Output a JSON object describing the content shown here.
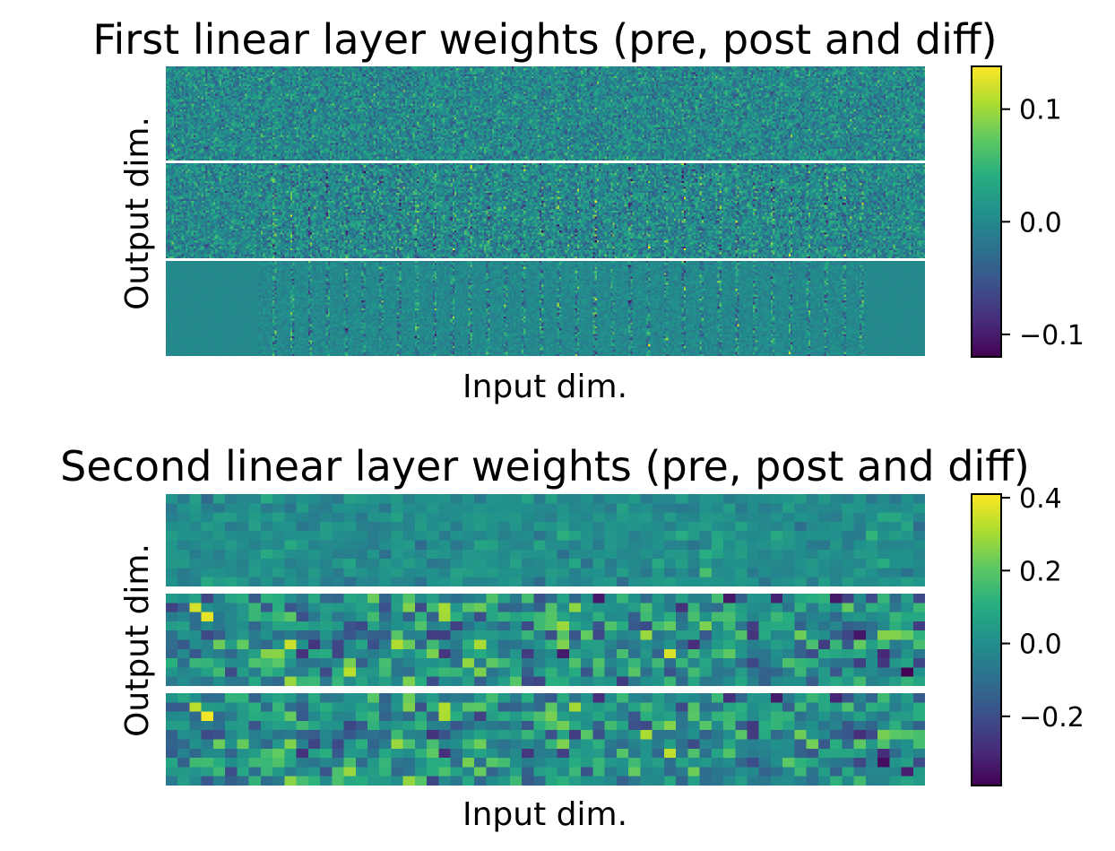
{
  "chart_data": [
    {
      "type": "heatmap",
      "title": "First linear layer weights (pre, post and diff)",
      "xlabel": "Input dim.",
      "ylabel": "Output dim.",
      "colormap": "viridis",
      "panels": [
        "pre",
        "post",
        "diff"
      ],
      "matrix_size": {
        "rows_per_panel": 48,
        "cols": 384
      },
      "colorbar": {
        "vmin": -0.12,
        "vmax": 0.138,
        "ticks": [
          0.1,
          0.0,
          -0.1
        ],
        "tick_labels": [
          "0.1",
          "0.0",
          "−0.1"
        ]
      }
    },
    {
      "type": "heatmap",
      "title": "Second linear layer weights (pre, post and diff)",
      "xlabel": "Input dim.",
      "ylabel": "Output dim.",
      "colormap": "viridis",
      "panels": [
        "pre",
        "post",
        "diff"
      ],
      "matrix_size": {
        "rows_per_panel": 10,
        "cols": 64
      },
      "colorbar": {
        "vmin": -0.39,
        "vmax": 0.41,
        "ticks": [
          0.4,
          0.2,
          0.0,
          -0.2
        ],
        "tick_labels": [
          "0.4",
          "0.2",
          "0.0",
          "−0.2"
        ]
      }
    }
  ]
}
